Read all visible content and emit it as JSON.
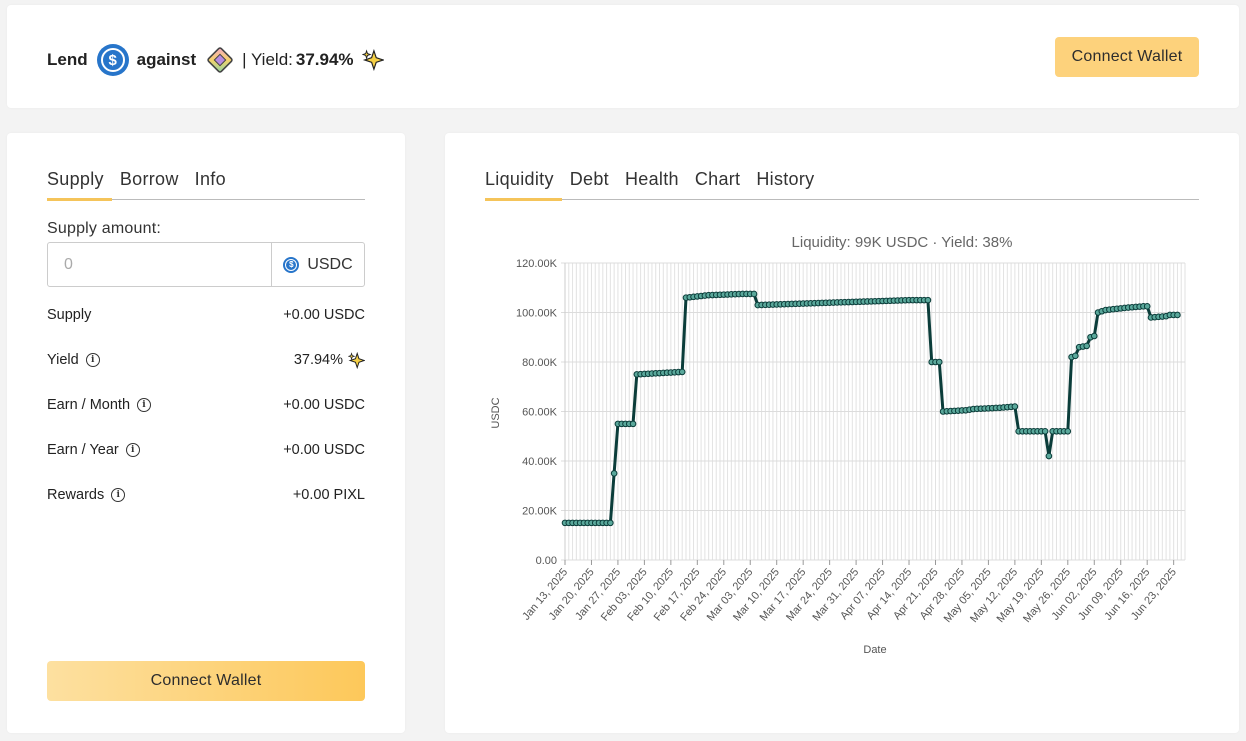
{
  "header": {
    "lend_label": "Lend",
    "against_label": "against",
    "yield_sep": "| Yield:",
    "yield_value": "37.94%",
    "connect_label": "Connect Wallet",
    "icons": [
      "usdc-icon",
      "nft-collection-icon",
      "sparkle-icon"
    ]
  },
  "left": {
    "tabs": [
      {
        "label": "Supply",
        "active": true
      },
      {
        "label": "Borrow",
        "active": false
      },
      {
        "label": "Info",
        "active": false
      }
    ],
    "supply_amount_label": "Supply amount:",
    "input_placeholder": "0",
    "unit": "USDC",
    "stats": [
      {
        "label": "Supply",
        "value": "+0.00 USDC",
        "info": false
      },
      {
        "label": "Yield",
        "value": "37.94%",
        "info": true
      },
      {
        "label": "Earn / Month",
        "value": "+0.00 USDC",
        "info": true
      },
      {
        "label": "Earn / Year",
        "value": "+0.00 USDC",
        "info": true
      },
      {
        "label": "Rewards",
        "value": "+0.00 PIXL",
        "info": true
      }
    ],
    "connect_label": "Connect Wallet"
  },
  "right": {
    "tabs": [
      {
        "label": "Liquidity",
        "active": true
      },
      {
        "label": "Debt",
        "active": false
      },
      {
        "label": "Health",
        "active": false
      },
      {
        "label": "Chart",
        "active": false
      },
      {
        "label": "History",
        "active": false
      }
    ]
  },
  "chart_data": {
    "type": "line",
    "title": "Liquidity: 99K USDC · Yield: 38%",
    "xlabel": "Date",
    "ylabel": "USDC",
    "ylim": [
      0,
      120000
    ],
    "yticks": [
      "0.00",
      "20.00K",
      "40.00K",
      "60.00K",
      "80.00K",
      "100.00K",
      "120.00K"
    ],
    "xticks": [
      "Jan 13, 2025",
      "Jan 20, 2025",
      "Jan 27, 2025",
      "Feb 03, 2025",
      "Feb 10, 2025",
      "Feb 17, 2025",
      "Feb 24, 2025",
      "Mar 03, 2025",
      "Mar 10, 2025",
      "Mar 17, 2025",
      "Mar 24, 2025",
      "Mar 31, 2025",
      "Apr 07, 2025",
      "Apr 14, 2025",
      "Apr 21, 2025",
      "Apr 28, 2025",
      "May 05, 2025",
      "May 12, 2025",
      "May 19, 2025",
      "May 26, 2025",
      "Jun 02, 2025",
      "Jun 09, 2025",
      "Jun 16, 2025",
      "Jun 23, 2025"
    ],
    "grid": true,
    "line_color": "#0b3d3a",
    "series": [
      {
        "name": "",
        "points": [
          [
            "2025-01-13",
            15000
          ],
          [
            "2025-01-25",
            15000
          ],
          [
            "2025-01-26",
            35000
          ],
          [
            "2025-01-27",
            55000
          ],
          [
            "2025-01-31",
            55000
          ],
          [
            "2025-02-01",
            75000
          ],
          [
            "2025-02-13",
            76000
          ],
          [
            "2025-02-14",
            106000
          ],
          [
            "2025-02-20",
            107000
          ],
          [
            "2025-03-01",
            107500
          ],
          [
            "2025-03-04",
            107500
          ],
          [
            "2025-03-05",
            103000
          ],
          [
            "2025-03-15",
            103500
          ],
          [
            "2025-03-25",
            104000
          ],
          [
            "2025-04-04",
            104500
          ],
          [
            "2025-04-14",
            105000
          ],
          [
            "2025-04-19",
            105000
          ],
          [
            "2025-04-20",
            80000
          ],
          [
            "2025-04-22",
            80000
          ],
          [
            "2025-04-23",
            60000
          ],
          [
            "2025-04-29",
            60500
          ],
          [
            "2025-05-01",
            61000
          ],
          [
            "2025-05-08",
            61500
          ],
          [
            "2025-05-12",
            62000
          ],
          [
            "2025-05-13",
            52000
          ],
          [
            "2025-05-20",
            52000
          ],
          [
            "2025-05-21",
            42000
          ],
          [
            "2025-05-22",
            52000
          ],
          [
            "2025-05-26",
            52000
          ],
          [
            "2025-05-27",
            82000
          ],
          [
            "2025-05-28",
            82500
          ],
          [
            "2025-05-29",
            86000
          ],
          [
            "2025-05-31",
            86500
          ],
          [
            "2025-06-01",
            90000
          ],
          [
            "2025-06-02",
            90500
          ],
          [
            "2025-06-03",
            100000
          ],
          [
            "2025-06-05",
            101000
          ],
          [
            "2025-06-08",
            101500
          ],
          [
            "2025-06-11",
            102000
          ],
          [
            "2025-06-15",
            102500
          ],
          [
            "2025-06-16",
            102500
          ],
          [
            "2025-06-17",
            98000
          ],
          [
            "2025-06-21",
            98500
          ],
          [
            "2025-06-22",
            99000
          ],
          [
            "2025-06-24",
            99000
          ]
        ]
      }
    ]
  }
}
